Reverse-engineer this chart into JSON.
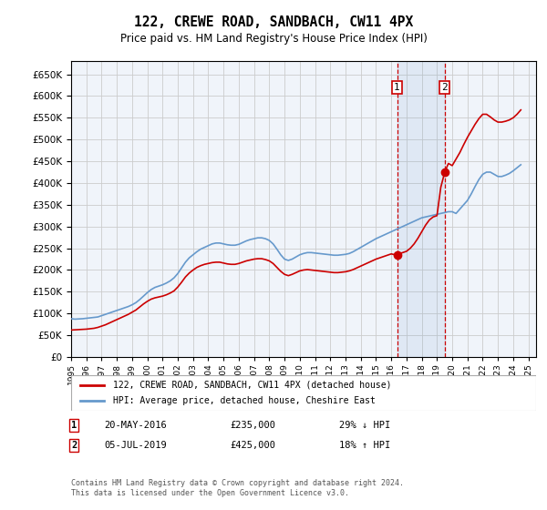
{
  "title": "122, CREWE ROAD, SANDBACH, CW11 4PX",
  "subtitle": "Price paid vs. HM Land Registry's House Price Index (HPI)",
  "ylabel_values": [
    0,
    50000,
    100000,
    150000,
    200000,
    250000,
    300000,
    350000,
    400000,
    450000,
    500000,
    550000,
    600000,
    650000
  ],
  "ylim": [
    0,
    680000
  ],
  "xlim_start": 1995.0,
  "xlim_end": 2025.5,
  "hpi_color": "#6699cc",
  "price_color": "#cc0000",
  "background_color": "#ffffff",
  "grid_color": "#cccccc",
  "legend_line1": "122, CREWE ROAD, SANDBACH, CW11 4PX (detached house)",
  "legend_line2": "HPI: Average price, detached house, Cheshire East",
  "transaction1_date": "20-MAY-2016",
  "transaction1_price": "£235,000",
  "transaction1_note": "29% ↓ HPI",
  "transaction1_year": 2016.38,
  "transaction2_date": "05-JUL-2019",
  "transaction2_price": "£425,000",
  "transaction2_note": "18% ↑ HPI",
  "transaction2_year": 2019.51,
  "footnote": "Contains HM Land Registry data © Crown copyright and database right 2024.\nThis data is licensed under the Open Government Licence v3.0.",
  "hpi_data_x": [
    1995.0,
    1995.25,
    1995.5,
    1995.75,
    1996.0,
    1996.25,
    1996.5,
    1996.75,
    1997.0,
    1997.25,
    1997.5,
    1997.75,
    1998.0,
    1998.25,
    1998.5,
    1998.75,
    1999.0,
    1999.25,
    1999.5,
    1999.75,
    2000.0,
    2000.25,
    2000.5,
    2000.75,
    2001.0,
    2001.25,
    2001.5,
    2001.75,
    2002.0,
    2002.25,
    2002.5,
    2002.75,
    2003.0,
    2003.25,
    2003.5,
    2003.75,
    2004.0,
    2004.25,
    2004.5,
    2004.75,
    2005.0,
    2005.25,
    2005.5,
    2005.75,
    2006.0,
    2006.25,
    2006.5,
    2006.75,
    2007.0,
    2007.25,
    2007.5,
    2007.75,
    2008.0,
    2008.25,
    2008.5,
    2008.75,
    2009.0,
    2009.25,
    2009.5,
    2009.75,
    2010.0,
    2010.25,
    2010.5,
    2010.75,
    2011.0,
    2011.25,
    2011.5,
    2011.75,
    2012.0,
    2012.25,
    2012.5,
    2012.75,
    2013.0,
    2013.25,
    2013.5,
    2013.75,
    2014.0,
    2014.25,
    2014.5,
    2014.75,
    2015.0,
    2015.25,
    2015.5,
    2015.75,
    2016.0,
    2016.25,
    2016.5,
    2016.75,
    2017.0,
    2017.25,
    2017.5,
    2017.75,
    2018.0,
    2018.25,
    2018.5,
    2018.75,
    2019.0,
    2019.25,
    2019.5,
    2019.75,
    2020.0,
    2020.25,
    2020.5,
    2020.75,
    2021.0,
    2021.25,
    2021.5,
    2021.75,
    2022.0,
    2022.25,
    2022.5,
    2022.75,
    2023.0,
    2023.25,
    2023.5,
    2023.75,
    2024.0,
    2024.25,
    2024.5
  ],
  "hpi_data_y": [
    88000,
    87000,
    87500,
    88000,
    89000,
    90000,
    91000,
    92000,
    95000,
    98000,
    101000,
    104000,
    107000,
    110000,
    113000,
    116000,
    120000,
    125000,
    132000,
    140000,
    148000,
    155000,
    160000,
    163000,
    166000,
    170000,
    175000,
    182000,
    192000,
    205000,
    218000,
    228000,
    235000,
    242000,
    248000,
    252000,
    256000,
    260000,
    262000,
    262000,
    260000,
    258000,
    257000,
    257000,
    259000,
    263000,
    267000,
    270000,
    272000,
    274000,
    274000,
    272000,
    268000,
    260000,
    248000,
    235000,
    225000,
    222000,
    225000,
    230000,
    235000,
    238000,
    240000,
    240000,
    239000,
    238000,
    237000,
    236000,
    235000,
    234000,
    234000,
    235000,
    236000,
    238000,
    242000,
    247000,
    252000,
    257000,
    262000,
    267000,
    272000,
    276000,
    280000,
    284000,
    288000,
    292000,
    296000,
    300000,
    304000,
    308000,
    312000,
    316000,
    320000,
    322000,
    324000,
    326000,
    328000,
    330000,
    332000,
    334000,
    334000,
    330000,
    340000,
    350000,
    360000,
    375000,
    392000,
    408000,
    420000,
    425000,
    425000,
    420000,
    415000,
    415000,
    418000,
    422000,
    428000,
    435000,
    442000
  ],
  "price_data_x": [
    1995.0,
    1995.25,
    1995.5,
    1995.75,
    1996.0,
    1996.25,
    1996.5,
    1996.75,
    1997.0,
    1997.25,
    1997.5,
    1997.75,
    1998.0,
    1998.25,
    1998.5,
    1998.75,
    1999.0,
    1999.25,
    1999.5,
    1999.75,
    2000.0,
    2000.25,
    2000.5,
    2000.75,
    2001.0,
    2001.25,
    2001.5,
    2001.75,
    2002.0,
    2002.25,
    2002.5,
    2002.75,
    2003.0,
    2003.25,
    2003.5,
    2003.75,
    2004.0,
    2004.25,
    2004.5,
    2004.75,
    2005.0,
    2005.25,
    2005.5,
    2005.75,
    2006.0,
    2006.25,
    2006.5,
    2006.75,
    2007.0,
    2007.25,
    2007.5,
    2007.75,
    2008.0,
    2008.25,
    2008.5,
    2008.75,
    2009.0,
    2009.25,
    2009.5,
    2009.75,
    2010.0,
    2010.25,
    2010.5,
    2010.75,
    2011.0,
    2011.25,
    2011.5,
    2011.75,
    2012.0,
    2012.25,
    2012.5,
    2012.75,
    2013.0,
    2013.25,
    2013.5,
    2013.75,
    2014.0,
    2014.25,
    2014.5,
    2014.75,
    2015.0,
    2015.25,
    2015.5,
    2015.75,
    2016.0,
    2016.25,
    2016.38,
    2016.5,
    2016.75,
    2017.0,
    2017.25,
    2017.5,
    2017.75,
    2018.0,
    2018.25,
    2018.5,
    2018.75,
    2019.0,
    2019.25,
    2019.51,
    2019.75,
    2020.0,
    2020.25,
    2020.5,
    2020.75,
    2021.0,
    2021.25,
    2021.5,
    2021.75,
    2022.0,
    2022.25,
    2022.5,
    2022.75,
    2023.0,
    2023.25,
    2023.5,
    2023.75,
    2024.0,
    2024.25,
    2024.5
  ],
  "price_data_y": [
    62000,
    62500,
    63000,
    63500,
    64000,
    65000,
    66000,
    68000,
    71000,
    74000,
    78000,
    82000,
    86000,
    90000,
    94000,
    98000,
    103000,
    108000,
    115000,
    122000,
    128000,
    133000,
    136000,
    138000,
    140000,
    143000,
    147000,
    152000,
    161000,
    172000,
    184000,
    193000,
    200000,
    206000,
    210000,
    213000,
    215000,
    217000,
    218000,
    218000,
    216000,
    214000,
    213000,
    213000,
    215000,
    218000,
    221000,
    223000,
    225000,
    226000,
    226000,
    224000,
    221000,
    215000,
    206000,
    197000,
    190000,
    187000,
    190000,
    194000,
    198000,
    200000,
    201000,
    200000,
    199000,
    198000,
    197000,
    196000,
    195000,
    194000,
    194000,
    195000,
    196000,
    198000,
    201000,
    205000,
    209000,
    213000,
    217000,
    221000,
    225000,
    228000,
    231000,
    234000,
    237000,
    235000,
    235000,
    237000,
    240000,
    243000,
    250000,
    260000,
    273000,
    288000,
    303000,
    315000,
    322000,
    325000,
    390000,
    425000,
    445000,
    440000,
    455000,
    470000,
    488000,
    505000,
    520000,
    535000,
    548000,
    558000,
    558000,
    552000,
    545000,
    540000,
    540000,
    542000,
    545000,
    550000,
    558000,
    568000
  ]
}
